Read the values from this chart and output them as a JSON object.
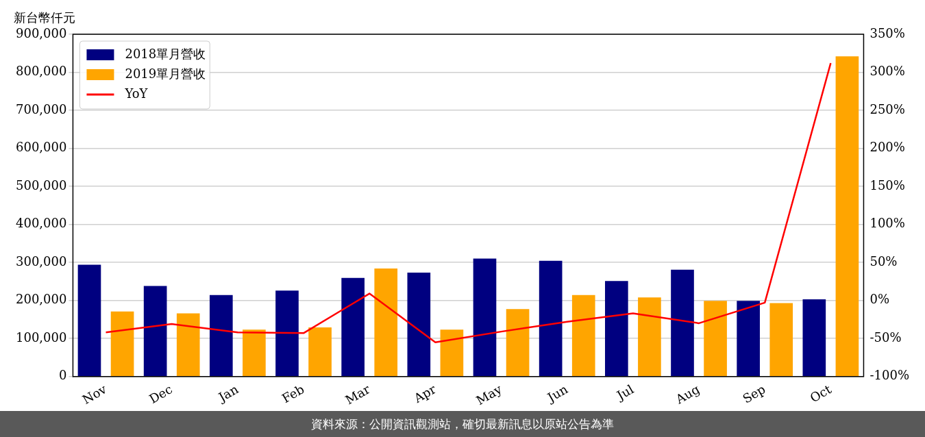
{
  "chart_data": {
    "type": "bar",
    "ylabel": "新台幣仟元",
    "categories": [
      "Nov",
      "Dec",
      "Jan",
      "Feb",
      "Mar",
      "Apr",
      "May",
      "Jun",
      "Jul",
      "Aug",
      "Sep",
      "Oct"
    ],
    "series": [
      {
        "name": "2018單月營收",
        "color": "#000080",
        "values": [
          294000,
          238000,
          214000,
          226000,
          259000,
          273000,
          310000,
          304000,
          251000,
          281000,
          199000,
          203000
        ]
      },
      {
        "name": "2019單月營收",
        "color": "#ffa500",
        "values": [
          171000,
          166000,
          123000,
          129000,
          284000,
          123000,
          177000,
          214000,
          208000,
          199000,
          193000,
          842000
        ]
      },
      {
        "name": "YoY",
        "type": "line",
        "axis": "y2",
        "color": "#ff0000",
        "values": [
          -42,
          -31,
          -42,
          -43,
          9,
          -55,
          -41,
          -28,
          -17,
          -30,
          -3,
          312
        ]
      }
    ],
    "ylim": [
      0,
      900000
    ],
    "yticks": [
      {
        "value": 0,
        "label": "0"
      },
      {
        "value": 100000,
        "label": "100,000"
      },
      {
        "value": 200000,
        "label": "200,000"
      },
      {
        "value": 300000,
        "label": "300,000"
      },
      {
        "value": 400000,
        "label": "400,000"
      },
      {
        "value": 500000,
        "label": "500,000"
      },
      {
        "value": 600000,
        "label": "600,000"
      },
      {
        "value": 700000,
        "label": "700,000"
      },
      {
        "value": 800000,
        "label": "800,000"
      },
      {
        "value": 900000,
        "label": "900,000"
      }
    ],
    "y2lim": [
      -100,
      350
    ],
    "y2ticks": [
      {
        "value": -100,
        "label": "-100%"
      },
      {
        "value": -50,
        "label": "-50%"
      },
      {
        "value": 0,
        "label": "0%"
      },
      {
        "value": 50,
        "label": "50%"
      },
      {
        "value": 100,
        "label": "100%"
      },
      {
        "value": 150,
        "label": "150%"
      },
      {
        "value": 200,
        "label": "200%"
      },
      {
        "value": 250,
        "label": "250%"
      },
      {
        "value": 300,
        "label": "300%"
      },
      {
        "value": 350,
        "label": "350%"
      }
    ],
    "grid": "y",
    "legend": "top left",
    "marker": "none",
    "line_style": "solid",
    "annotations": [
      "資料來源：公開資訊觀測站，確切最新訊息以原站公告為準"
    ]
  }
}
